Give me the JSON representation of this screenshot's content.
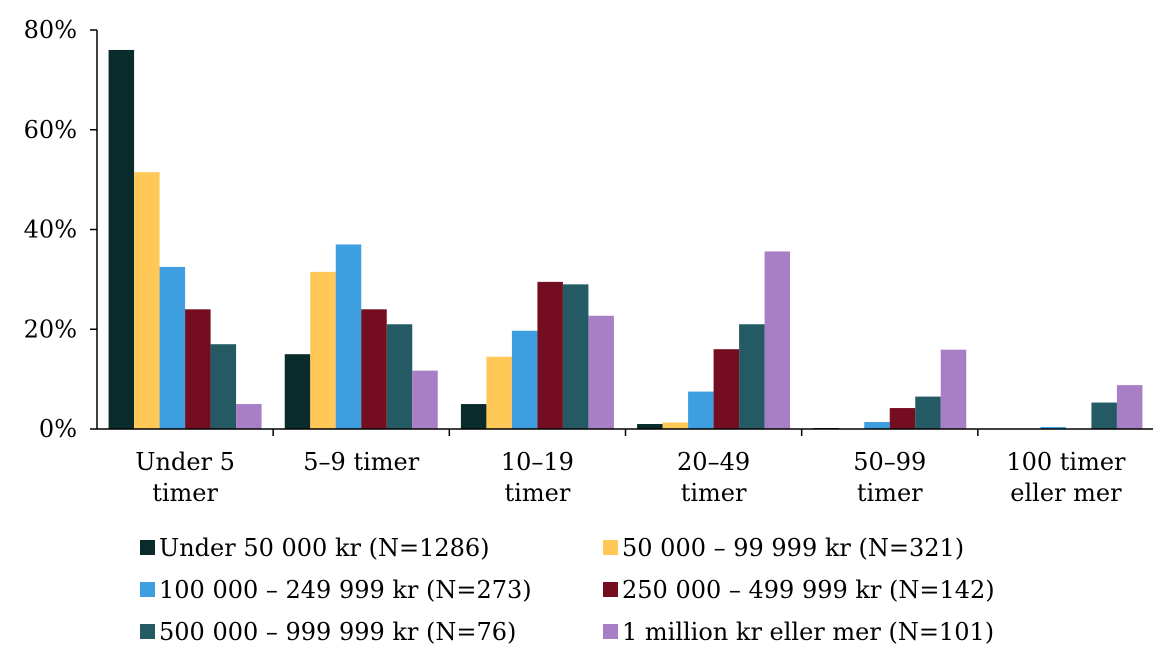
{
  "chart_data": {
    "type": "bar",
    "title": "",
    "xlabel": "",
    "ylabel": "",
    "ylim": [
      0,
      80
    ],
    "y_ticks": [
      "0%",
      "20%",
      "40%",
      "60%",
      "80%"
    ],
    "grid": false,
    "legend_position": "bottom",
    "categories": [
      [
        "Under 5",
        "timer"
      ],
      [
        "5–9 timer"
      ],
      [
        "10–19",
        "timer"
      ],
      [
        "20–49",
        "timer"
      ],
      [
        "50–99",
        "timer"
      ],
      [
        "100 timer",
        "eller mer"
      ]
    ],
    "series": [
      {
        "name": "Under 50 000 kr (N=1286)",
        "color": "#0a2b2b",
        "values": [
          76,
          15,
          5,
          1,
          0.2,
          0.1
        ]
      },
      {
        "name": "50 000 – 99 999 kr (N=321)",
        "color": "#ffc857",
        "values": [
          51.5,
          31.5,
          14.5,
          1.3,
          0,
          0
        ]
      },
      {
        "name": "100 000 – 249 999 kr (N=273)",
        "color": "#3d9ee0",
        "values": [
          32.5,
          37,
          19.7,
          7.5,
          1.4,
          0.4
        ]
      },
      {
        "name": "250 000 – 499 999 kr (N=142)",
        "color": "#750d21",
        "values": [
          24,
          24,
          29.5,
          16,
          4.2,
          0
        ]
      },
      {
        "name": "500 000 – 999 999 kr (N=76)",
        "color": "#245a63",
        "values": [
          17,
          21,
          29,
          21,
          6.5,
          5.3
        ]
      },
      {
        "name": "1 million kr eller mer (N=101)",
        "color": "#a87ec6",
        "values": [
          5,
          11.7,
          22.7,
          35.6,
          15.9,
          8.8
        ]
      }
    ]
  }
}
